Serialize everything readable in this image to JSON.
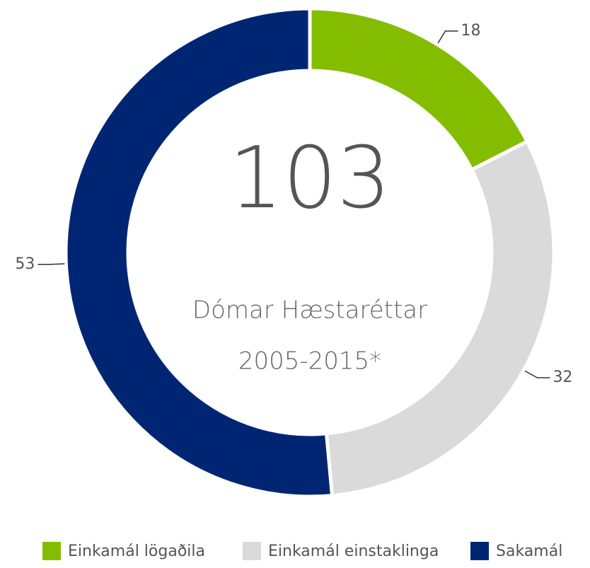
{
  "chart_data": {
    "type": "donut",
    "title": "Dómar Hæstaréttar",
    "subtitle": "2005-2015*",
    "total": 103,
    "categories": [
      "Einkamál lögaðila",
      "Einkamál einstaklinga",
      "Sakamál"
    ],
    "values": [
      18,
      32,
      53
    ],
    "colors": [
      "#84bd00",
      "#dadada",
      "#002673"
    ],
    "legend": "bottom"
  }
}
